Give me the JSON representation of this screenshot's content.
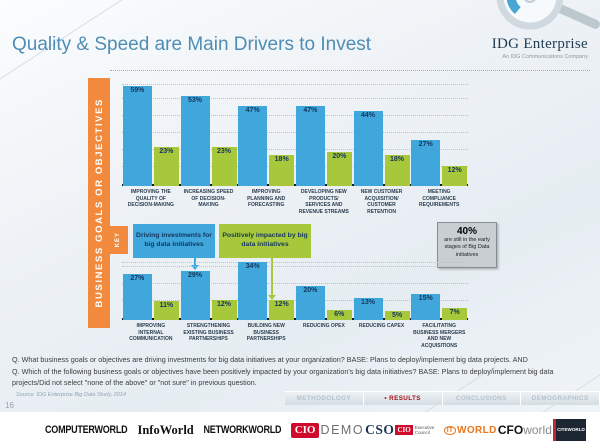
{
  "slide": {
    "title": "Quality & Speed are Main Drivers to Invest",
    "page_number": "16",
    "axis_label": "BUSINESS GOALS OR OBJECTIVES",
    "logo": {
      "name": "IDG Enterprise",
      "tagline": "An IDG Communications Company"
    }
  },
  "key": {
    "label": "KEY",
    "driving": "Driving investments for big data initiatives",
    "impacted": "Positively impacted by big data initiatives"
  },
  "callout": {
    "stat": "40%",
    "text": "are still in the early stages of Big Data initiatives"
  },
  "colors": {
    "driving_blue": "#3fa7dc",
    "impacted_green": "#a8c83c",
    "accent_orange": "#f18a3d",
    "title_blue": "#4e8db4",
    "nav_active_red": "#a31116"
  },
  "chart_data": [
    {
      "type": "bar",
      "categories": [
        "IMPROVING THE QUALITY OF DECISION-MAKING",
        "INCREASING SPEED OF DECISION-MAKING",
        "IMPROVING PLANNING AND FORECASTING",
        "DEVELOPING NEW PRODUCTS/ SERVICES AND REVENUE STREAMS",
        "NEW CUSTOMER ACQUISITION/ CUSTOMER RETENTION",
        "MEETING COMPLIANCE REQUIREMENTS"
      ],
      "series": [
        {
          "name": "Driving investments for big data initiatives",
          "color": "#3fa7dc",
          "values": [
            59,
            53,
            47,
            47,
            44,
            27
          ]
        },
        {
          "name": "Positively impacted by big data initiatives",
          "color": "#a8c83c",
          "values": [
            23,
            23,
            18,
            20,
            18,
            12
          ]
        }
      ],
      "unit": "%",
      "ylim": [
        0,
        60
      ],
      "grid": true,
      "value_labels": true,
      "legend_position": "middle-left"
    },
    {
      "type": "bar",
      "categories": [
        "IMPROVING INTERNAL COMMUNICATION",
        "STRENGTHENING EXISTING BUSINESS PARTNERSHIPS",
        "BUILDING NEW BUSINESS PARTNERSHIPS",
        "REDUCING OPEX",
        "REDUCING CAPEX",
        "FACILITATING BUSINESS MERGERS AND NEW ACQUISITIONS"
      ],
      "series": [
        {
          "name": "Driving investments for big data initiatives",
          "color": "#3fa7dc",
          "values": [
            27,
            29,
            34,
            20,
            13,
            15
          ]
        },
        {
          "name": "Positively impacted by big data initiatives",
          "color": "#a8c83c",
          "values": [
            11,
            12,
            12,
            6,
            5,
            7
          ]
        }
      ],
      "unit": "%",
      "ylim": [
        0,
        35
      ],
      "grid": true,
      "value_labels": true
    }
  ],
  "questions": [
    "Q. What business goals or objectives are driving investments for big data initiatives at your organization? BASE: Plans to deploy/implement big data projects. AND",
    "Q. Which of the following business goals or objectives have been positively impacted by your organization's big data initiatives? BASE: Plans to deploy/implement big data projects/Did not select \"none of the above\" or \"not sure\" in previous question."
  ],
  "source": "Source: IDG Enterprise Big Data Study, 2014",
  "nav": {
    "tabs": [
      "METHODOLOGY",
      "RESULTS",
      "CONCLUSIONS",
      "DEMOGRAPHICS"
    ],
    "active": "RESULTS"
  },
  "footer_logos": [
    {
      "id": "computerworld",
      "text": "COMPUTERWORLD"
    },
    {
      "id": "infoworld",
      "text": "InfoWorld"
    },
    {
      "id": "networkworld",
      "text": "NETWORKWORLD"
    },
    {
      "id": "cio",
      "text": "CIO"
    },
    {
      "id": "demo",
      "text": "DEMO"
    },
    {
      "id": "cso",
      "text": "CSO"
    },
    {
      "id": "cio-executive-council",
      "text": "CIO",
      "text2": "Executive Council"
    },
    {
      "id": "itworld",
      "text": "IT",
      "text2": "WORLD"
    },
    {
      "id": "cfoworld",
      "text": "CFO",
      "text2": "world"
    },
    {
      "id": "citeworld",
      "text": "CITEWORLD"
    }
  ]
}
